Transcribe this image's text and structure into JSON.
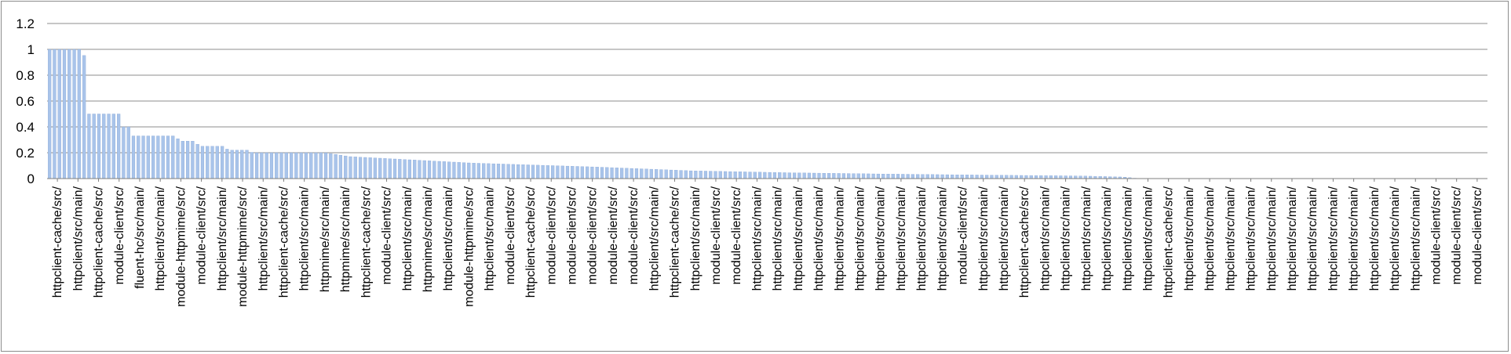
{
  "chart_data": {
    "type": "bar",
    "title": "",
    "xlabel": "",
    "ylabel": "",
    "ylim": [
      0,
      1.2
    ],
    "y_ticks": [
      "0",
      "0.2",
      "0.4",
      "0.6",
      "0.8",
      "1",
      "1.2"
    ],
    "grid": true,
    "legend": "none",
    "bar_color": "#a9c4ea",
    "bar_edge_color": "#7d9fd3",
    "gridline_color": "#8c8c8c",
    "n_bars": 292,
    "profile": [
      [
        0,
        1.0
      ],
      [
        14,
        1.0
      ],
      [
        15,
        0.67
      ],
      [
        16,
        0.5
      ],
      [
        29,
        0.5
      ],
      [
        30,
        0.4
      ],
      [
        33,
        0.4
      ],
      [
        34,
        0.33
      ],
      [
        52,
        0.33
      ],
      [
        53,
        0.29
      ],
      [
        60,
        0.29
      ],
      [
        61,
        0.25
      ],
      [
        72,
        0.25
      ],
      [
        73,
        0.22
      ],
      [
        82,
        0.22
      ],
      [
        83,
        0.2
      ],
      [
        113,
        0.2
      ],
      [
        123,
        0.17
      ],
      [
        173,
        0.12
      ],
      [
        223,
        0.09
      ],
      [
        263,
        0.06
      ],
      [
        303,
        0.045
      ],
      [
        343,
        0.035
      ],
      [
        383,
        0.027
      ],
      [
        423,
        0.02
      ],
      [
        440,
        0.012
      ],
      [
        446,
        0.0
      ],
      [
        588,
        0.0
      ]
    ],
    "category_labels": [
      "httpclient-cache/src/",
      "httpclient/src/main/",
      "httpclient-cache/src/",
      "module-client/src/",
      "fluent-hc/src/main/",
      "httpclient/src/main/",
      "module-httpmime/src/",
      "module-client/src/",
      "httpclient/src/main/",
      "module-httpmime/src/",
      "httpclient/src/main/",
      "httpclient-cache/src/",
      "httpclient/src/main/",
      "httpmime/src/main/",
      "httpmime/src/main/",
      "httpclient-cache/src/",
      "module-client/src/",
      "httpclient/src/main/",
      "httpmime/src/main/",
      "httpclient/src/main/",
      "module-httpmime/src/",
      "httpclient/src/main/",
      "module-client/src/",
      "httpclient-cache/src/",
      "module-client/src/",
      "module-client/src/",
      "module-client/src/",
      "module-client/src/",
      "module-client/src/",
      "httpclient/src/main/",
      "httpclient-cache/src/",
      "httpclient/src/main/",
      "module-client/src/",
      "module-client/src/",
      "httpclient/src/main/",
      "httpclient/src/main/",
      "httpclient/src/main/",
      "httpclient/src/main/",
      "httpclient/src/main/",
      "httpclient/src/main/",
      "httpclient/src/main/",
      "httpclient/src/main/",
      "httpclient/src/main/",
      "httpclient/src/main/",
      "module-client/src/",
      "httpclient/src/main/",
      "httpclient/src/main/",
      "httpclient-cache/src/",
      "httpclient/src/main/",
      "httpclient/src/main/",
      "httpclient/src/main/",
      "httpclient/src/main/",
      "httpclient/src/main/",
      "httpclient/src/main/",
      "httpclient-cache/src/",
      "httpclient/src/main/",
      "httpclient/src/main/",
      "httpclient/src/main/",
      "httpclient/src/main/",
      "httpclient/src/main/",
      "httpclient/src/main/",
      "httpclient/src/main/",
      "httpclient/src/main/",
      "httpclient/src/main/",
      "httpclient/src/main/",
      "httpclient/src/main/",
      "httpclient/src/main/",
      "module-client/src/",
      "module-client/src/",
      "module-client/src/"
    ]
  }
}
